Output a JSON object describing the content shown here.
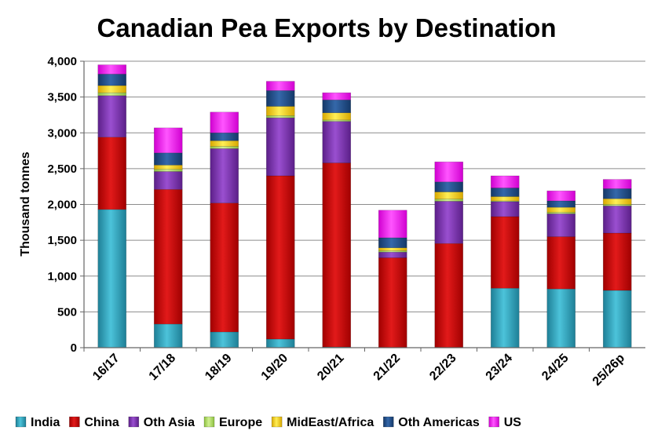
{
  "chart_data": {
    "type": "bar",
    "stacked": true,
    "title": "Canadian Pea Exports by Destination",
    "xlabel": "",
    "ylabel": "Thousand tonnes",
    "ylim": [
      0,
      4000
    ],
    "yticks": [
      "0",
      "500",
      "1,000",
      "1,500",
      "2,000",
      "2,500",
      "3,000",
      "3,500",
      "4,000"
    ],
    "ytick_values": [
      0,
      500,
      1000,
      1500,
      2000,
      2500,
      3000,
      3500,
      4000
    ],
    "grid": true,
    "legend_position": "bottom",
    "categories": [
      "16/17",
      "17/18",
      "18/19",
      "19/20",
      "20/21",
      "21/22",
      "22/23",
      "23/24",
      "24/25",
      "25/26p"
    ],
    "series": [
      {
        "name": "India",
        "color": "#31B0C8",
        "values": [
          1930,
          330,
          220,
          120,
          10,
          5,
          5,
          830,
          820,
          800
        ]
      },
      {
        "name": "China",
        "color": "#D40000",
        "values": [
          1010,
          1880,
          1800,
          2280,
          2570,
          1250,
          1450,
          1000,
          730,
          800
        ]
      },
      {
        "name": "Oth Asia",
        "color": "#7A2FB0",
        "values": [
          580,
          250,
          760,
          810,
          580,
          80,
          590,
          210,
          320,
          380
        ]
      },
      {
        "name": "Europe",
        "color": "#B0E060",
        "values": [
          40,
          30,
          30,
          30,
          20,
          20,
          30,
          10,
          20,
          20
        ]
      },
      {
        "name": "MidEast/Africa",
        "color": "#FFD700",
        "values": [
          100,
          60,
          80,
          130,
          100,
          40,
          100,
          60,
          70,
          80
        ]
      },
      {
        "name": "Oth Americas",
        "color": "#1F4E8C",
        "values": [
          160,
          170,
          110,
          220,
          180,
          140,
          140,
          120,
          90,
          140
        ]
      },
      {
        "name": "US",
        "color": "#FF00FF",
        "values": [
          130,
          350,
          290,
          130,
          100,
          385,
          280,
          170,
          140,
          130
        ]
      }
    ]
  }
}
